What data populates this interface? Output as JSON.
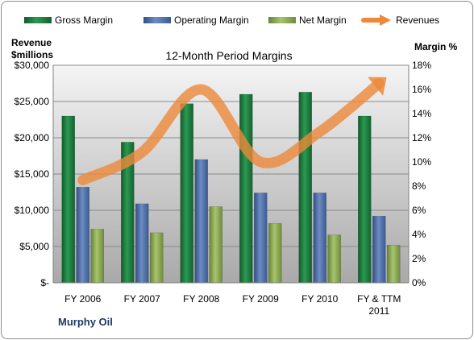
{
  "chart_data": {
    "type": "bar",
    "title": "12-Month Period Margins",
    "categories": [
      "FY 2006",
      "FY 2007",
      "FY 2008",
      "FY 2009",
      "FY 2010",
      "FY & TTM 2011"
    ],
    "series": [
      {
        "name": "Gross Margin",
        "axis": "left",
        "color": "#1f8040",
        "values": [
          23000,
          19400,
          24700,
          26000,
          26300,
          23000
        ]
      },
      {
        "name": "Operating Margin",
        "axis": "left",
        "color": "#4f6fa8",
        "values": [
          13200,
          10900,
          17000,
          12400,
          12400,
          9200
        ]
      },
      {
        "name": "Net Margin",
        "axis": "left",
        "color": "#8bac4e",
        "values": [
          7400,
          6900,
          10500,
          8200,
          6600,
          5200
        ]
      },
      {
        "name": "Revenues",
        "axis": "right",
        "type": "line",
        "style": "smooth-arrow",
        "color": "#ec8a3a",
        "values": [
          8.5,
          10.8,
          16.0,
          10.0,
          12.5,
          16.5
        ]
      }
    ],
    "left_axis": {
      "label_lines": [
        "Revenue",
        "$millions"
      ],
      "ylim": [
        0,
        30000
      ],
      "ticks": [
        0,
        5000,
        10000,
        15000,
        20000,
        25000,
        30000
      ],
      "tick_labels": [
        "$-",
        "$5,000",
        "$10,000",
        "$15,000",
        "$20,000",
        "$25,000",
        "$30,000"
      ]
    },
    "right_axis": {
      "label": "Margin %",
      "ylim": [
        0,
        18
      ],
      "ticks": [
        0,
        2,
        4,
        6,
        8,
        10,
        12,
        14,
        16,
        18
      ],
      "tick_labels": [
        "0%",
        "2%",
        "4%",
        "6%",
        "8%",
        "10%",
        "12%",
        "14%",
        "16%",
        "18%"
      ]
    },
    "category_label_lines": [
      [
        "FY 2006"
      ],
      [
        "FY 2007"
      ],
      [
        "FY 2008"
      ],
      [
        "FY 2009"
      ],
      [
        "FY 2010"
      ],
      [
        "FY & TTM",
        "2011"
      ]
    ],
    "legend": {
      "placement": "top",
      "entries": [
        "Gross Margin",
        "Operating Margin",
        "Net Margin",
        "Revenues"
      ]
    },
    "grid": true,
    "plot_background": "gradient-gray"
  },
  "footer_label": "Murphy Oil"
}
